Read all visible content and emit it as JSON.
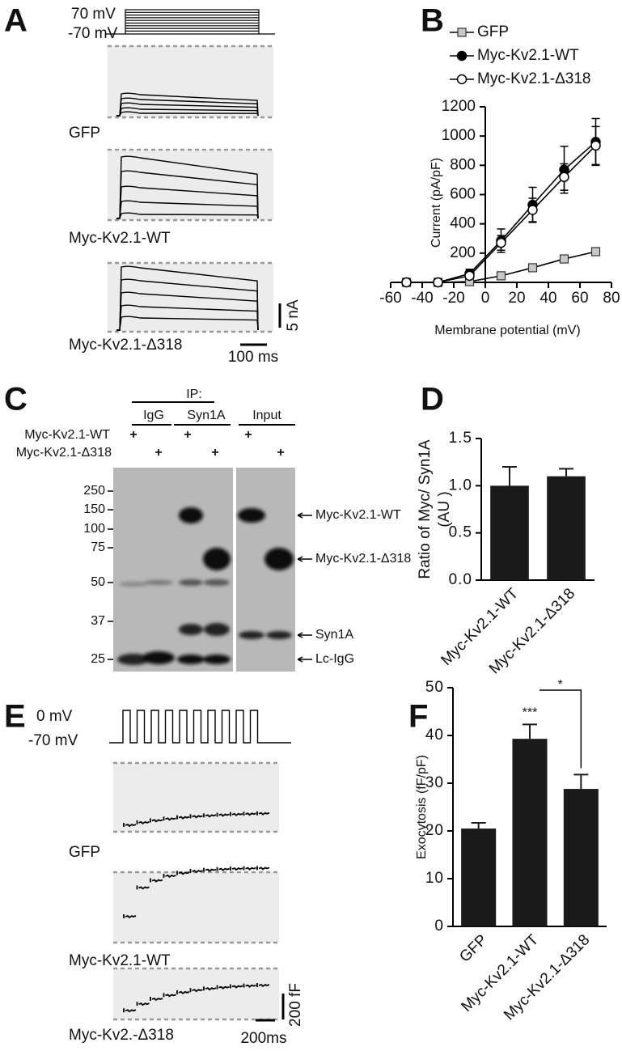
{
  "panel_labels": [
    "A",
    "B",
    "C",
    "D",
    "E",
    "F"
  ],
  "panel_a": {
    "protocol_labels": [
      "70 mV",
      "-70 mV"
    ],
    "trace_labels": [
      "GFP",
      "Myc-Kv2.1-WT",
      "Myc-Kv2.1-Δ318"
    ],
    "scale_y": "5 nA",
    "scale_x": "100 ms"
  },
  "panel_c": {
    "ip_label": "IP:",
    "lane_groups": [
      "IgG",
      "Syn1A",
      "Input"
    ],
    "row_labels": [
      "Myc-Kv2.1-WT",
      "Myc-Kv2.1-Δ318"
    ],
    "plus_marks": [
      "+",
      "+",
      "+",
      "+",
      "+",
      "+"
    ],
    "mw_markers": [
      250,
      150,
      100,
      75,
      50,
      37,
      25
    ],
    "band_labels": [
      "Myc-Kv2.1-WT",
      "Myc-Kv2.1-Δ318",
      "Syn1A",
      "Lc-IgG"
    ]
  },
  "panel_e": {
    "protocol_labels": [
      "0 mV",
      "-70 mV"
    ],
    "trace_labels": [
      "GFP",
      "Myc-Kv2.1-WT",
      "Myc-Kv2.-Δ318"
    ],
    "scale_y": "200 fF",
    "scale_x": "200ms"
  },
  "chart_data": [
    {
      "type": "line",
      "x_label": "Membrane potential (mV)",
      "y_label": "Current (pA/pF)",
      "x": [
        -50,
        -30,
        -10,
        10,
        30,
        50,
        70
      ],
      "series": [
        {
          "name": "GFP",
          "color": "#c8c8c8",
          "marker": "square",
          "values": [
            0,
            0,
            5,
            45,
            100,
            160,
            210
          ]
        },
        {
          "name": "Myc-Kv2.1-WT",
          "color": "#000000",
          "marker": "circle",
          "values": [
            0,
            0,
            60,
            285,
            530,
            770,
            960
          ],
          "errors": [
            null,
            null,
            30,
            80,
            120,
            160,
            160
          ]
        },
        {
          "name": "Myc-Kv2.1-Δ318",
          "color": "#ffffff",
          "marker": "circle",
          "values": [
            0,
            0,
            45,
            270,
            495,
            720,
            935
          ],
          "errors": [
            null,
            null,
            20,
            50,
            80,
            90,
            130
          ]
        }
      ],
      "xlim": [
        -60,
        80
      ],
      "xticks": [
        -60,
        -40,
        -20,
        0,
        20,
        40,
        60,
        80
      ],
      "ylim": [
        0,
        1200
      ],
      "yticks": [
        200,
        400,
        600,
        800,
        1000,
        1200
      ]
    },
    {
      "type": "bar",
      "y_label": [
        "Ratio of Myc/ Syn1A",
        "(AU )"
      ],
      "categories": [
        "Myc-Kv2.1-WT",
        "Myc-Kv2.1-Δ318"
      ],
      "values": [
        1.0,
        1.1
      ],
      "errors": [
        0.2,
        0.08
      ],
      "color": "#1a1a1a",
      "ylim": [
        0,
        1.5
      ],
      "yticks": [
        {
          "value": 0,
          "label": "0.0"
        },
        0.5,
        {
          "value": 1,
          "label": "1.0"
        },
        1.5
      ]
    },
    {
      "type": "bar",
      "y_label": "Exocytosis (fF/pF)",
      "categories": [
        "GFP",
        "Myc-Kv2.1-WT",
        "Myc-Kv2.1-Δ318"
      ],
      "values": [
        20.5,
        39.3,
        28.8
      ],
      "errors": [
        1.2,
        3.0,
        3.0
      ],
      "color": "#1a1a1a",
      "annotations": [
        "***",
        "*"
      ],
      "ylim": [
        0,
        50
      ],
      "yticks": [
        0,
        10,
        20,
        30,
        40,
        50
      ]
    }
  ]
}
